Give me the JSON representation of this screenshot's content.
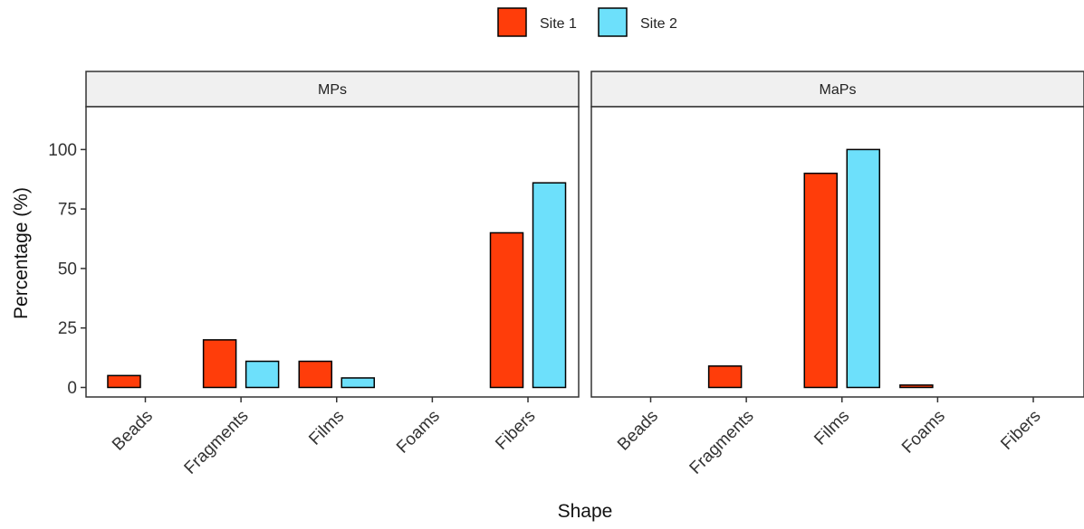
{
  "chart_data": {
    "type": "bar",
    "xlabel": "Shape",
    "ylabel": "Percentage (%)",
    "ylim": [
      -4,
      118
    ],
    "yticks": [
      0,
      25,
      50,
      75,
      100
    ],
    "legend_position": "top",
    "legend": [
      {
        "name": "Site 1",
        "color": "#FF3D0A"
      },
      {
        "name": "Site 2",
        "color": "#6DE0FB"
      }
    ],
    "categories": [
      "Beads",
      "Fragments",
      "Films",
      "Foams",
      "Fibers"
    ],
    "facets": [
      {
        "title": "MPs",
        "series": [
          {
            "name": "Site 1",
            "values": [
              5,
              20,
              11,
              0,
              65
            ]
          },
          {
            "name": "Site 2",
            "values": [
              0,
              11,
              4,
              0,
              86
            ]
          }
        ]
      },
      {
        "title": "MaPs",
        "series": [
          {
            "name": "Site 1",
            "values": [
              0,
              9,
              90,
              1,
              0
            ]
          },
          {
            "name": "Site 2",
            "values": [
              0,
              0,
              100,
              0,
              0
            ]
          }
        ]
      }
    ]
  }
}
